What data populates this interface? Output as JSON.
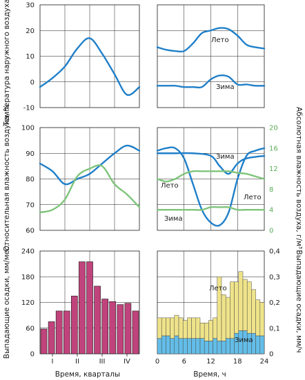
{
  "chart_data": [
    {
      "id": "temp_year",
      "type": "line",
      "ylabel": "Температура наружного воздуха, °С",
      "ylim": [
        -10,
        30
      ],
      "yticks": [
        "30",
        "20",
        "10",
        "0",
        "-10"
      ],
      "xlim": [
        0,
        4
      ],
      "grid": true,
      "series": [
        {
          "color": "#1f7fc9",
          "x": [
            0,
            0.5,
            1,
            1.5,
            2,
            2.5,
            3,
            3.5,
            4
          ],
          "y": [
            -2,
            1.5,
            6,
            13,
            17,
            11,
            3,
            -5,
            -2
          ]
        }
      ]
    },
    {
      "id": "temp_day",
      "type": "line",
      "xlim": [
        0,
        24
      ],
      "ylim": [
        -10,
        30
      ],
      "grid": true,
      "series": [
        {
          "name": "Лето",
          "color": "#1f7fc9",
          "x": [
            0,
            2,
            4,
            6,
            8,
            10,
            12,
            14,
            16,
            18,
            20,
            22,
            24
          ],
          "y": [
            13.5,
            12.5,
            12,
            12,
            15,
            19,
            20,
            21,
            20.5,
            18,
            14.5,
            13.5,
            13
          ]
        },
        {
          "name": "Зима",
          "color": "#1f7fc9",
          "x": [
            0,
            2,
            4,
            6,
            8,
            10,
            12,
            14,
            16,
            18,
            20,
            22,
            24
          ],
          "y": [
            -1.5,
            -1.5,
            -1.5,
            -2,
            -2,
            -2,
            1,
            2.5,
            2,
            -1,
            -1,
            -1.5,
            -1.5
          ]
        }
      ]
    },
    {
      "id": "humidity_year",
      "type": "line",
      "ylabel": "Относительная влажность воздуха, %",
      "ylim": [
        60,
        100
      ],
      "yticks": [
        "100",
        "90",
        "80",
        "70",
        "60"
      ],
      "y2label": "Абсолютная влажность воздуха, г/м³",
      "y2lim": [
        0,
        20
      ],
      "xlim": [
        0,
        4
      ],
      "grid": true,
      "series": [
        {
          "axis": "left",
          "color": "#1f7fc9",
          "x": [
            0,
            0.5,
            1,
            1.5,
            2,
            2.5,
            3,
            3.5,
            4
          ],
          "y": [
            86,
            83,
            78,
            80,
            82,
            86,
            90,
            93,
            91
          ]
        },
        {
          "axis": "right",
          "color": "#7ec47a",
          "x": [
            0,
            0.5,
            1,
            1.5,
            2,
            2.5,
            3,
            3.5,
            4
          ],
          "y": [
            3.5,
            4,
            6,
            10.5,
            12,
            12.5,
            9,
            7,
            4.5
          ]
        }
      ]
    },
    {
      "id": "humidity_day",
      "type": "line",
      "xlim": [
        0,
        24
      ],
      "ylim": [
        60,
        100
      ],
      "y2lim": [
        0,
        20
      ],
      "y2ticks": [
        "20",
        "16",
        "12",
        "8",
        "4",
        "0"
      ],
      "grid": true,
      "series": [
        {
          "name": "Зима",
          "axis": "left",
          "color": "#1f7fc9",
          "x": [
            0,
            4,
            8,
            12,
            14,
            16,
            18,
            20,
            24
          ],
          "y": [
            90,
            90,
            90,
            89,
            85,
            82,
            86,
            88,
            89
          ]
        },
        {
          "name": "Лето",
          "axis": "left",
          "color": "#1f7fc9",
          "x": [
            0,
            2,
            4,
            6,
            8,
            10,
            12,
            14,
            16,
            18,
            20,
            22,
            24
          ],
          "y": [
            91,
            92,
            92,
            88,
            78,
            68,
            63,
            62,
            67,
            80,
            89,
            91,
            92
          ]
        },
        {
          "name": "Лето",
          "axis": "right",
          "color": "#7ec47a",
          "x": [
            0,
            2,
            4,
            6,
            8,
            10,
            12,
            14,
            16,
            18,
            20,
            22,
            24
          ],
          "y": [
            10,
            9.5,
            10,
            11,
            11.5,
            11.5,
            11.5,
            11.5,
            11.5,
            11.2,
            11,
            10.5,
            10
          ]
        },
        {
          "name": "Зима",
          "axis": "right",
          "color": "#7ec47a",
          "x": [
            0,
            4,
            8,
            10,
            12,
            14,
            16,
            18,
            20,
            24
          ],
          "y": [
            4,
            4,
            4,
            4,
            4.5,
            4.5,
            4.5,
            4,
            4,
            4
          ]
        }
      ]
    },
    {
      "id": "precip_year",
      "type": "bar",
      "ylabel": "Выпадающие осадки, мм/мес.",
      "ylim": [
        0,
        240
      ],
      "yticks": [
        "240",
        "180",
        "120",
        "60",
        "0"
      ],
      "xlabel": "Время, кварталы",
      "xticks": [
        "I",
        "II",
        "III",
        "IV"
      ],
      "values": [
        58,
        75,
        100,
        100,
        135,
        215,
        215,
        158,
        128,
        122,
        115,
        118,
        100
      ],
      "color": "#c0437c"
    },
    {
      "id": "precip_day",
      "type": "bar",
      "stacked": true,
      "xlabel": "Время, ч",
      "xticks": [
        "0",
        "6",
        "12",
        "18",
        "24"
      ],
      "ylim": [
        0,
        0.4
      ],
      "y2label": "Выпадающие осадки, мм/ч",
      "y2ticks": [
        "0,4",
        "0,3",
        "0,2",
        "0,1",
        "0"
      ],
      "series": [
        {
          "name": "Зима",
          "color": "#63bde8",
          "values": [
            0.06,
            0.07,
            0.07,
            0.06,
            0.07,
            0.06,
            0.06,
            0.06,
            0.06,
            0.06,
            0.06,
            0.05,
            0.05,
            0.06,
            0.05,
            0.05,
            0.06,
            0.06,
            0.08,
            0.09,
            0.09,
            0.08,
            0.08,
            0.07,
            0.07
          ]
        },
        {
          "name": "Лето",
          "color": "#efe38a",
          "values": [
            0.08,
            0.07,
            0.07,
            0.08,
            0.08,
            0.08,
            0.07,
            0.08,
            0.08,
            0.08,
            0.06,
            0.07,
            0.08,
            0.08,
            0.25,
            0.18,
            0.16,
            0.22,
            0.2,
            0.23,
            0.2,
            0.2,
            0.17,
            0.14,
            0.13
          ]
        }
      ]
    }
  ],
  "annotations": {
    "temp_summer": "Лето",
    "temp_winter": "Зима",
    "hum_winter_blue": "Зима",
    "hum_summer_green": "Лето",
    "hum_summer_blue": "Лето",
    "hum_winter_green": "Зима",
    "pre_summer": "Лето",
    "pre_winter": "Зима"
  }
}
